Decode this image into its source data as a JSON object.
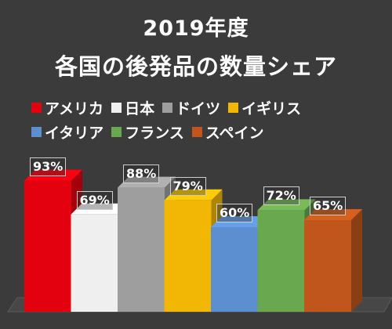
{
  "chart_data": {
    "type": "bar",
    "title": "2019年度",
    "subtitle": "各国の後発品の数量シェア",
    "categories": [
      "アメリカ",
      "日本",
      "ドイツ",
      "イギリス",
      "イタリア",
      "フランス",
      "スペイン"
    ],
    "values": [
      93,
      69,
      88,
      79,
      60,
      72,
      65
    ],
    "data_labels": [
      "93%",
      "69%",
      "88%",
      "79%",
      "60%",
      "72%",
      "65%"
    ],
    "colors": [
      "#e3000f",
      "#efefef",
      "#9e9e9e",
      "#f2b705",
      "#5b8fd0",
      "#6aa84f",
      "#c0561b"
    ],
    "ylim": [
      0,
      100
    ],
    "grid": false,
    "legend_position": "top",
    "style": "3d-bar"
  }
}
